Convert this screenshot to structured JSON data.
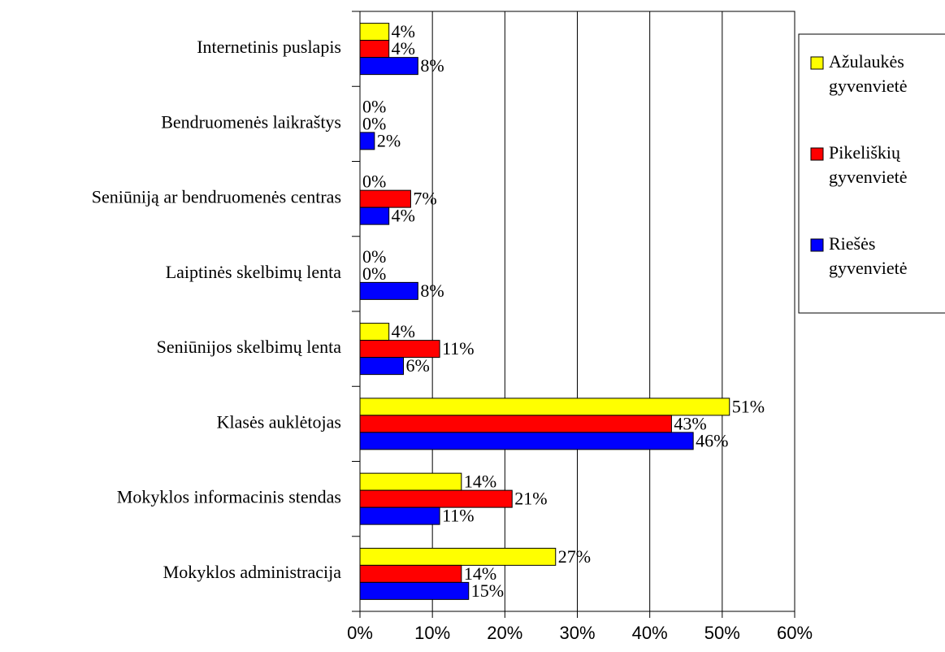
{
  "chart_data": {
    "type": "hbar",
    "categories": [
      "Internetinis puslapis",
      "Bendruomenės laikraštys",
      "Seniūniją ar bendruomenės centras",
      "Laiptinės skelbimų lenta",
      "Seniūnijos skelbimų lenta",
      "Klasės auklėtojas",
      "Mokyklos informacinis stendas",
      "Mokyklos administracija"
    ],
    "series": [
      {
        "name": "Ažulaukės gyvenvietė",
        "color": "#ffff00",
        "values": [
          4,
          0,
          0,
          0,
          4,
          51,
          14,
          27
        ],
        "value_labels": [
          "4%",
          "0%",
          "0%",
          "0%",
          "4%",
          "51%",
          "14%",
          "27%"
        ]
      },
      {
        "name": "Pikeliškių gyvenvietė",
        "color": "#ff0000",
        "values": [
          4,
          0,
          7,
          0,
          11,
          43,
          21,
          14
        ],
        "value_labels": [
          "4%",
          "0%",
          "7%",
          "0%",
          "11%",
          "43%",
          "21%",
          "14%"
        ]
      },
      {
        "name": "Riešės gyvenvietė",
        "color": "#0000ff",
        "values": [
          8,
          2,
          4,
          8,
          6,
          46,
          11,
          15
        ],
        "value_labels": [
          "8%",
          "2%",
          "4%",
          "8%",
          "6%",
          "46%",
          "11%",
          "15%"
        ]
      }
    ],
    "xlim": [
      0,
      60
    ],
    "xticks": [
      {
        "value": 0,
        "label": "0%"
      },
      {
        "value": 10,
        "label": "10%"
      },
      {
        "value": 20,
        "label": "20%"
      },
      {
        "value": 30,
        "label": "30%"
      },
      {
        "value": 40,
        "label": "40%"
      },
      {
        "value": 50,
        "label": "50%"
      },
      {
        "value": 60,
        "label": "60%"
      }
    ],
    "grid": true,
    "legend": "right"
  }
}
